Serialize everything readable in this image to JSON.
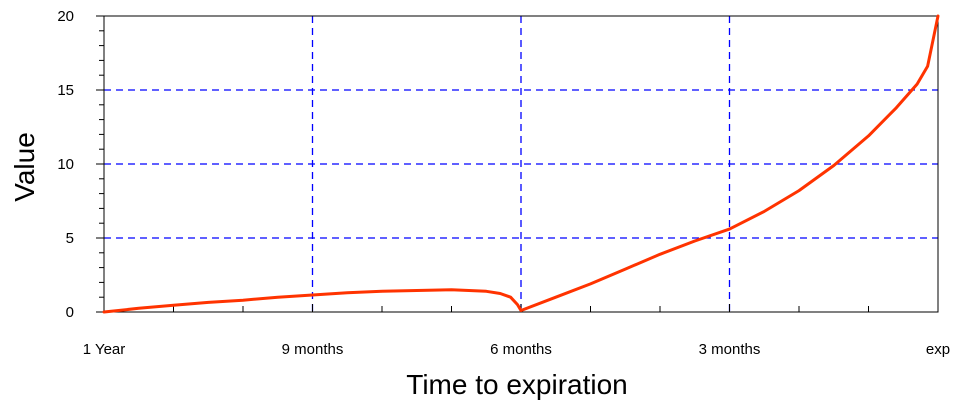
{
  "chart_data": {
    "type": "line",
    "title": "",
    "xlabel": "Time to expiration",
    "ylabel": "Value",
    "x_unit": "months to expiration",
    "xlim": [
      12,
      0
    ],
    "ylim": [
      0,
      20
    ],
    "x_ticks": [
      {
        "value": 12,
        "label": "1 Year"
      },
      {
        "value": 9,
        "label": "9 months"
      },
      {
        "value": 6,
        "label": "6 months"
      },
      {
        "value": 3,
        "label": "3 months"
      },
      {
        "value": 0,
        "label": "exp"
      }
    ],
    "y_ticks": [
      {
        "value": 0,
        "label": "0"
      },
      {
        "value": 5,
        "label": "5"
      },
      {
        "value": 10,
        "label": "10"
      },
      {
        "value": 15,
        "label": "15"
      },
      {
        "value": 20,
        "label": "20"
      }
    ],
    "grid": true,
    "grid_style": "dashed",
    "colors": {
      "series": "#ff3300",
      "grid": "#0000ff",
      "axis": "#000000"
    },
    "series": [
      {
        "x": [
          12,
          11.5,
          11,
          10.5,
          10,
          9.5,
          9,
          8.5,
          8,
          7.5,
          7,
          6.75,
          6.5,
          6.3,
          6.15,
          6.05,
          6.0,
          5.5,
          5.0,
          4.5,
          4.0,
          3.5,
          3.0,
          2.5,
          2.0,
          1.5,
          1.0,
          0.6,
          0.3,
          0.15,
          0.0
        ],
        "y": [
          0.0,
          0.25,
          0.45,
          0.65,
          0.8,
          1.0,
          1.15,
          1.3,
          1.4,
          1.45,
          1.5,
          1.45,
          1.4,
          1.25,
          1.0,
          0.5,
          0.1,
          1.0,
          1.9,
          2.9,
          3.9,
          4.8,
          5.6,
          6.8,
          8.2,
          9.9,
          11.9,
          13.8,
          15.4,
          16.6,
          20.0
        ]
      }
    ]
  }
}
